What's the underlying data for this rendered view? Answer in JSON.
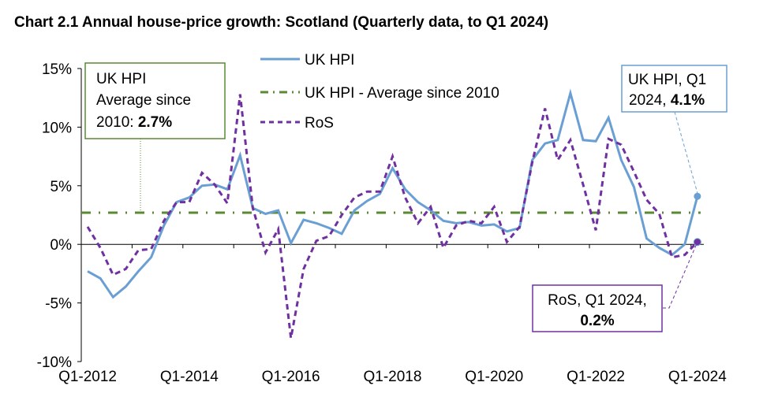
{
  "chart_data": {
    "type": "line",
    "title": "Chart 2.1 Annual house-price growth: Scotland (Quarterly data, to Q1 2024)",
    "x_tick_labels": [
      "Q1-2012",
      "Q1-2014",
      "Q1-2016",
      "Q1-2018",
      "Q1-2020",
      "Q1-2022",
      "Q1-2024"
    ],
    "x_start": "Q1-2012",
    "x_end": "Q1-2024",
    "ylim": [
      -10,
      15
    ],
    "y_ticks": [
      -10,
      -5,
      0,
      5,
      10,
      15
    ],
    "y_tick_labels": [
      "-10%",
      "-5%",
      "0%",
      "5%",
      "10%",
      "15%"
    ],
    "grid": false,
    "legend_position": "top-center",
    "series": [
      {
        "name": "UK HPI",
        "color": "#6a9fd4",
        "style": "solid",
        "values": [
          -2.3,
          -2.9,
          -4.5,
          -3.6,
          -2.3,
          -1.1,
          1.6,
          3.6,
          4.0,
          5.0,
          5.1,
          4.7,
          7.6,
          3.1,
          2.6,
          2.9,
          0.1,
          2.1,
          1.8,
          1.4,
          0.9,
          2.9,
          3.7,
          4.3,
          6.5,
          4.7,
          3.6,
          2.9,
          2.0,
          1.8,
          1.9,
          1.6,
          1.7,
          1.1,
          1.4,
          7.2,
          8.6,
          8.9,
          12.9,
          8.9,
          8.8,
          10.8,
          7.2,
          4.9,
          0.5,
          -0.3,
          -0.9,
          0.0,
          4.1
        ]
      },
      {
        "name": "UK HPI - Average since 2010",
        "color": "#5a8a32",
        "style": "dash-dot",
        "constant": 2.7
      },
      {
        "name": "RoS",
        "color": "#7030a0",
        "style": "dashed",
        "values": [
          1.5,
          -0.3,
          -2.6,
          -2.1,
          -0.5,
          -0.4,
          2.0,
          3.6,
          3.6,
          6.1,
          5.1,
          3.5,
          12.8,
          3.1,
          -0.7,
          1.3,
          -8.0,
          -2.1,
          0.3,
          0.7,
          2.5,
          4.0,
          4.5,
          4.5,
          7.5,
          4.0,
          1.8,
          3.2,
          -0.3,
          1.6,
          2.0,
          1.8,
          3.2,
          0.2,
          1.5,
          7.0,
          11.6,
          7.2,
          8.9,
          5.1,
          1.2,
          9.0,
          8.5,
          6.2,
          3.8,
          2.6,
          -1.1,
          -0.9,
          0.2
        ]
      }
    ],
    "annotations": {
      "average": {
        "line1": "UK HPI",
        "line2": "Average since",
        "line3_prefix": "2010: ",
        "value": "2.7%"
      },
      "uk_hpi_latest": {
        "line1": "UK HPI, Q1",
        "line2_prefix": "2024, ",
        "value": "4.1%"
      },
      "ros_latest": {
        "line1": "RoS, Q1 2024,",
        "value": "0.2%"
      }
    }
  }
}
